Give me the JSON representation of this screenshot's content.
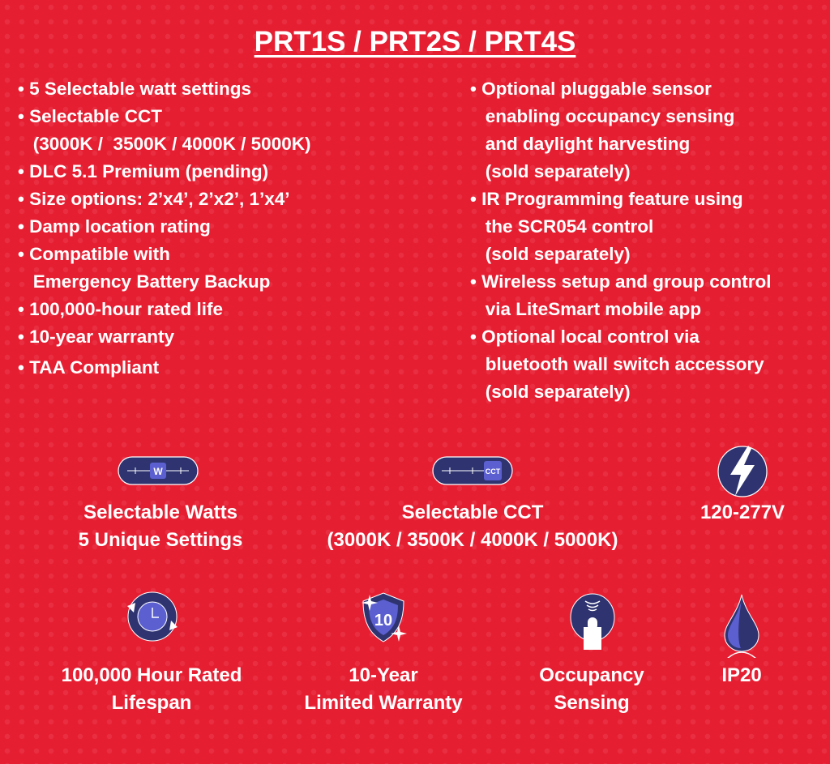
{
  "title": "PRT1S / PRT2S / PRT4S",
  "left_features": [
    "• 5 Selectable watt settings",
    "• Selectable CCT",
    "   (3000K /  3500K / 4000K / 5000K)",
    "• DLC 5.1 Premium (pending)",
    "• Size options: 2’x4’, 2’x2’, 1’x4’",
    "• Damp location rating",
    "• Compatible with",
    "   Emergency Battery Backup",
    "• 100,000-hour rated life",
    "• 10-year warranty",
    "• TAA Compliant"
  ],
  "right_features": [
    "• Optional pluggable sensor",
    "   enabling occupancy sensing",
    "   and daylight harvesting",
    "   (sold separately)",
    "• IR Programming feature using",
    "   the SCR054 control",
    "   (sold separately)",
    "• Wireless setup and group control",
    "   via LiteSmart mobile app",
    "• Optional local control via",
    "   bluetooth wall switch accessory",
    "   (sold separately)"
  ],
  "badges": {
    "watts": {
      "icon": "watt-slider-icon",
      "icon_text": "W",
      "line1": "Selectable Watts",
      "line2": "5 Unique Settings"
    },
    "cct": {
      "icon": "cct-slider-icon",
      "icon_text": "CCT",
      "line1": "Selectable CCT",
      "line2": "(3000K / 3500K / 4000K / 5000K)"
    },
    "voltage": {
      "icon": "lightning-bolt-icon",
      "line1": "120-277V"
    },
    "lifespan": {
      "icon": "clock-cycle-icon",
      "line1": "100,000 Hour Rated",
      "line2": "Lifespan"
    },
    "warranty": {
      "icon": "shield-icon",
      "icon_text": "10",
      "line1": "10-Year",
      "line2": "Limited Warranty"
    },
    "occupancy": {
      "icon": "occupancy-sensor-icon",
      "line1": "Occupancy",
      "line2": "Sensing"
    },
    "ip": {
      "icon": "water-drop-icon",
      "line1": "IP20"
    }
  },
  "colors": {
    "background": "#e61e32",
    "icon_navy": "#2f3470",
    "icon_accent": "#5b5fd0",
    "text": "#ffffff"
  }
}
